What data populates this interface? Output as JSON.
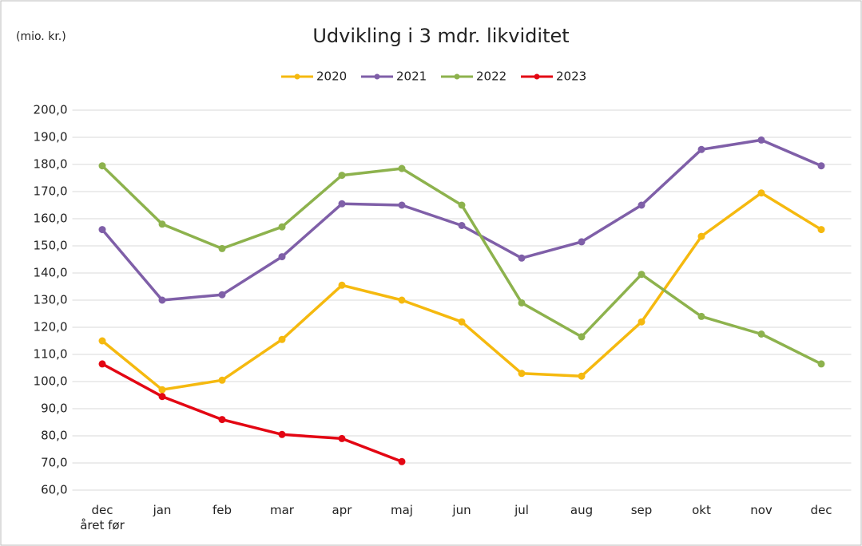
{
  "chart_data": {
    "type": "line",
    "title": "Udvikling i 3 mdr. likviditet",
    "y_axis_label": "(mio. kr.)",
    "categories": [
      "dec\nåret før",
      "jan",
      "feb",
      "mar",
      "apr",
      "maj",
      "jun",
      "jul",
      "aug",
      "sep",
      "okt",
      "nov",
      "dec"
    ],
    "series": [
      {
        "name": "2020",
        "color": "#f5b90f",
        "values": [
          115,
          97,
          100.5,
          115.5,
          135.5,
          130,
          122,
          103,
          102,
          122,
          153.5,
          169.5,
          156
        ]
      },
      {
        "name": "2021",
        "color": "#7f5fa8",
        "values": [
          156,
          130,
          132,
          146,
          165.5,
          165,
          157.5,
          145.5,
          151.5,
          165,
          185.5,
          189,
          179.5
        ]
      },
      {
        "name": "2022",
        "color": "#8db24d",
        "values": [
          179.5,
          158,
          149,
          157,
          176,
          178.5,
          165,
          129,
          116.5,
          139.5,
          124,
          117.5,
          106.5
        ]
      },
      {
        "name": "2023",
        "color": "#e30613",
        "values": [
          106.5,
          94.5,
          86,
          80.5,
          79,
          70.5,
          null,
          null,
          null,
          null,
          null,
          null,
          null
        ]
      }
    ],
    "ylim": [
      60,
      200
    ],
    "yticks": [
      {
        "value": 60,
        "label": "60,0"
      },
      {
        "value": 70,
        "label": "70,0"
      },
      {
        "value": 80,
        "label": "80,0"
      },
      {
        "value": 90,
        "label": "90,0"
      },
      {
        "value": 100,
        "label": "100,0"
      },
      {
        "value": 110,
        "label": "110,0"
      },
      {
        "value": 120,
        "label": "120,0"
      },
      {
        "value": 130,
        "label": "130,0"
      },
      {
        "value": 140,
        "label": "140,0"
      },
      {
        "value": 150,
        "label": "150,0"
      },
      {
        "value": 160,
        "label": "160,0"
      },
      {
        "value": 170,
        "label": "170,0"
      },
      {
        "value": 180,
        "label": "180,0"
      },
      {
        "value": 190,
        "label": "190,0"
      },
      {
        "value": 200,
        "label": "200,0"
      }
    ],
    "grid": true,
    "legend": "top"
  }
}
